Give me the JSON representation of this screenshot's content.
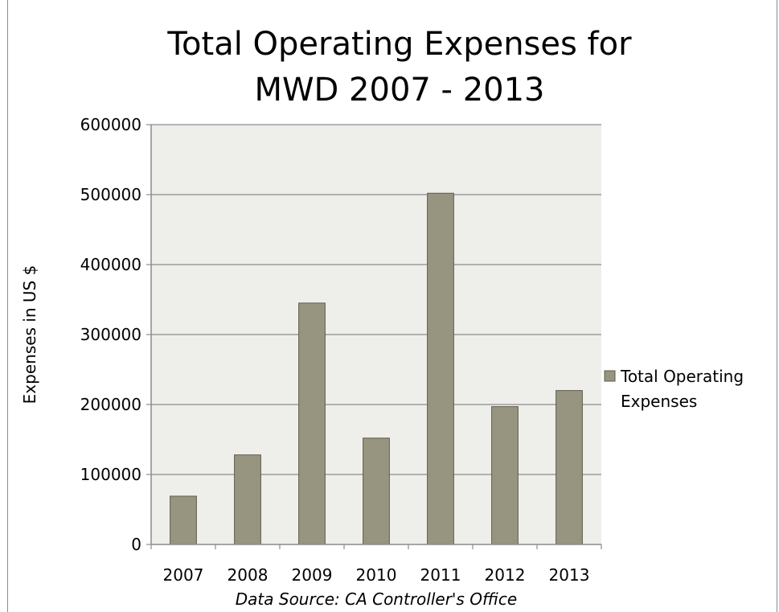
{
  "chart_data": {
    "type": "bar",
    "title_lines": [
      "Total Operating Expenses for",
      "MWD 2007 - 2013"
    ],
    "xlabel": "",
    "ylabel": "Expenses in US $",
    "categories": [
      "2007",
      "2008",
      "2009",
      "2010",
      "2011",
      "2012",
      "2013"
    ],
    "series": [
      {
        "name": "Total Operating Expenses",
        "legend_lines": [
          "Total Operating",
          "Expenses"
        ],
        "values": [
          69000,
          128000,
          345000,
          152000,
          502000,
          197000,
          220000
        ]
      }
    ],
    "ylim": [
      0,
      600000
    ],
    "yticks": [
      "0",
      "100000",
      "200000",
      "300000",
      "400000",
      "500000",
      "600000"
    ],
    "grid": true,
    "legend_position": "right",
    "source_note": "Data Source:  CA Controller's Office",
    "colors": {
      "bar_fill": "#979580",
      "bar_stroke": "#5e5d4d",
      "plot_bg": "#eeeeea",
      "grid": "#8c8c8c"
    }
  }
}
